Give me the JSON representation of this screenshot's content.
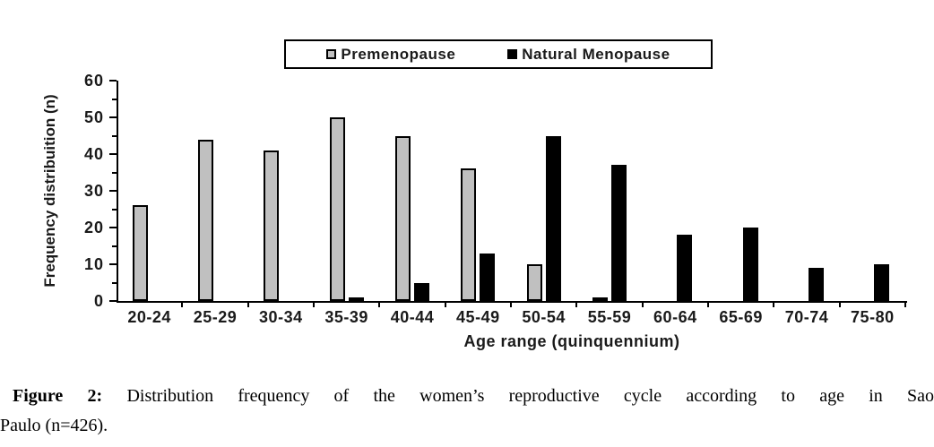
{
  "chart_data": {
    "type": "bar",
    "title": "",
    "categories": [
      "20-24",
      "25-29",
      "30-34",
      "35-39",
      "40-44",
      "45-49",
      "50-54",
      "55-59",
      "60-64",
      "65-69",
      "70-74",
      "75-80"
    ],
    "series": [
      {
        "name": "Premenopause",
        "color": "#C0C0C0",
        "values": [
          26,
          44,
          41,
          50,
          45,
          36,
          10,
          1,
          0,
          0,
          0,
          0
        ]
      },
      {
        "name": "Natural Menopause",
        "color": "#000000",
        "values": [
          0,
          0,
          0,
          1,
          5,
          13,
          45,
          37,
          18,
          20,
          9,
          10
        ]
      }
    ],
    "xlabel": "Age range (quinquennium)",
    "ylabel": "Frequency distribuition (n)",
    "ylim": [
      0,
      60
    ],
    "yticks": [
      0,
      10,
      20,
      30,
      40,
      50,
      60
    ],
    "ytick_minor_step": 5,
    "grid": false,
    "legend_position": "top"
  },
  "caption": {
    "label": "Figure 2:",
    "line1_rest": "Distribution frequency of the women’s reproductive cycle according to age in Sao",
    "line2": "Paulo (n=426)."
  }
}
